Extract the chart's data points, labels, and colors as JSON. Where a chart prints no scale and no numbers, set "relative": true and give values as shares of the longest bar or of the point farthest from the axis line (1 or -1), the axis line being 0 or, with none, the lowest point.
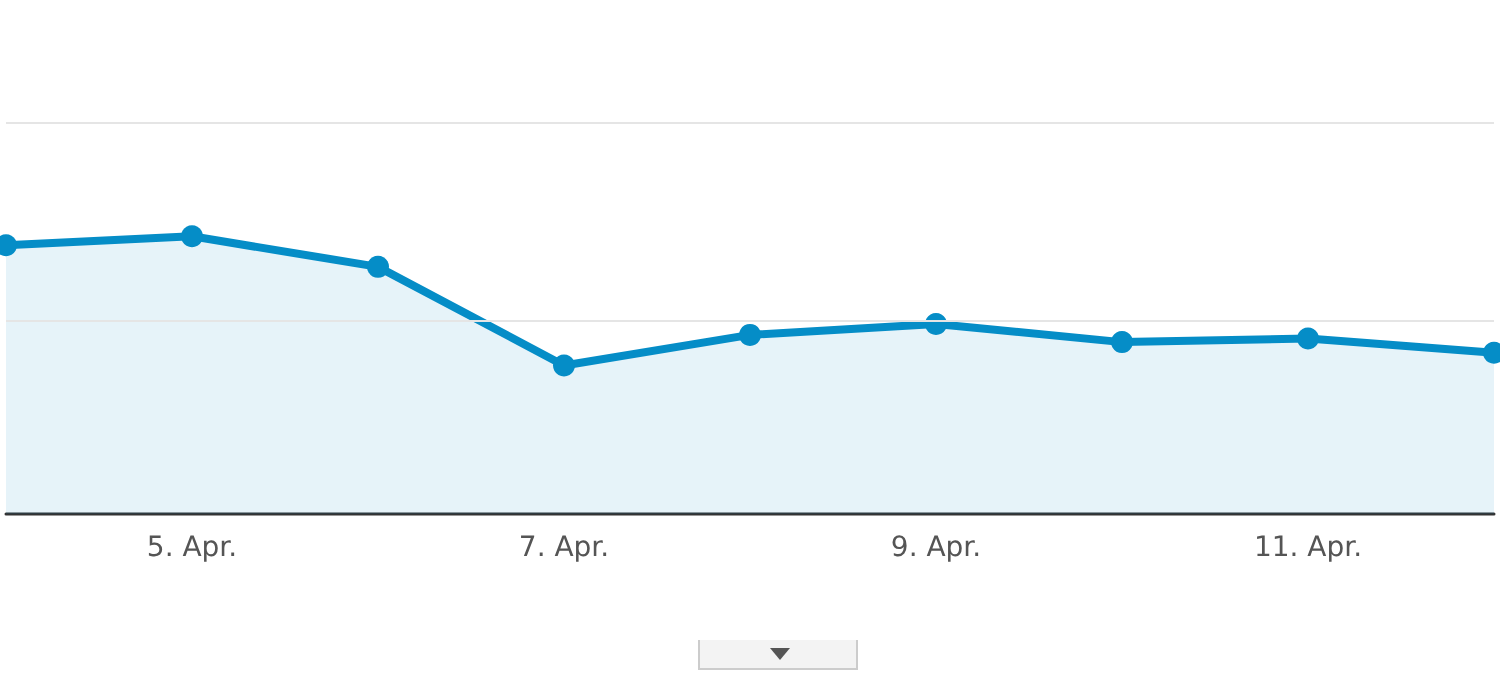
{
  "chart_data": {
    "type": "area",
    "relative": true,
    "categories": [
      null,
      "5. Apr.",
      null,
      "7. Apr.",
      null,
      "9. Apr.",
      null,
      "11. Apr.",
      null
    ],
    "series": [
      {
        "color": "#058dc7",
        "values": [
          0.968,
          1,
          0.89,
          0.535,
          0.645,
          0.684,
          0.619,
          0.632,
          0.581
        ]
      }
    ],
    "ref_lines": [
      {
        "axis": "y",
        "value": 0.703,
        "color": "#e5e5e5"
      },
      {
        "axis": "y",
        "value": 1.413,
        "color": "#e5e5e5"
      }
    ],
    "marker": "circle"
  }
}
